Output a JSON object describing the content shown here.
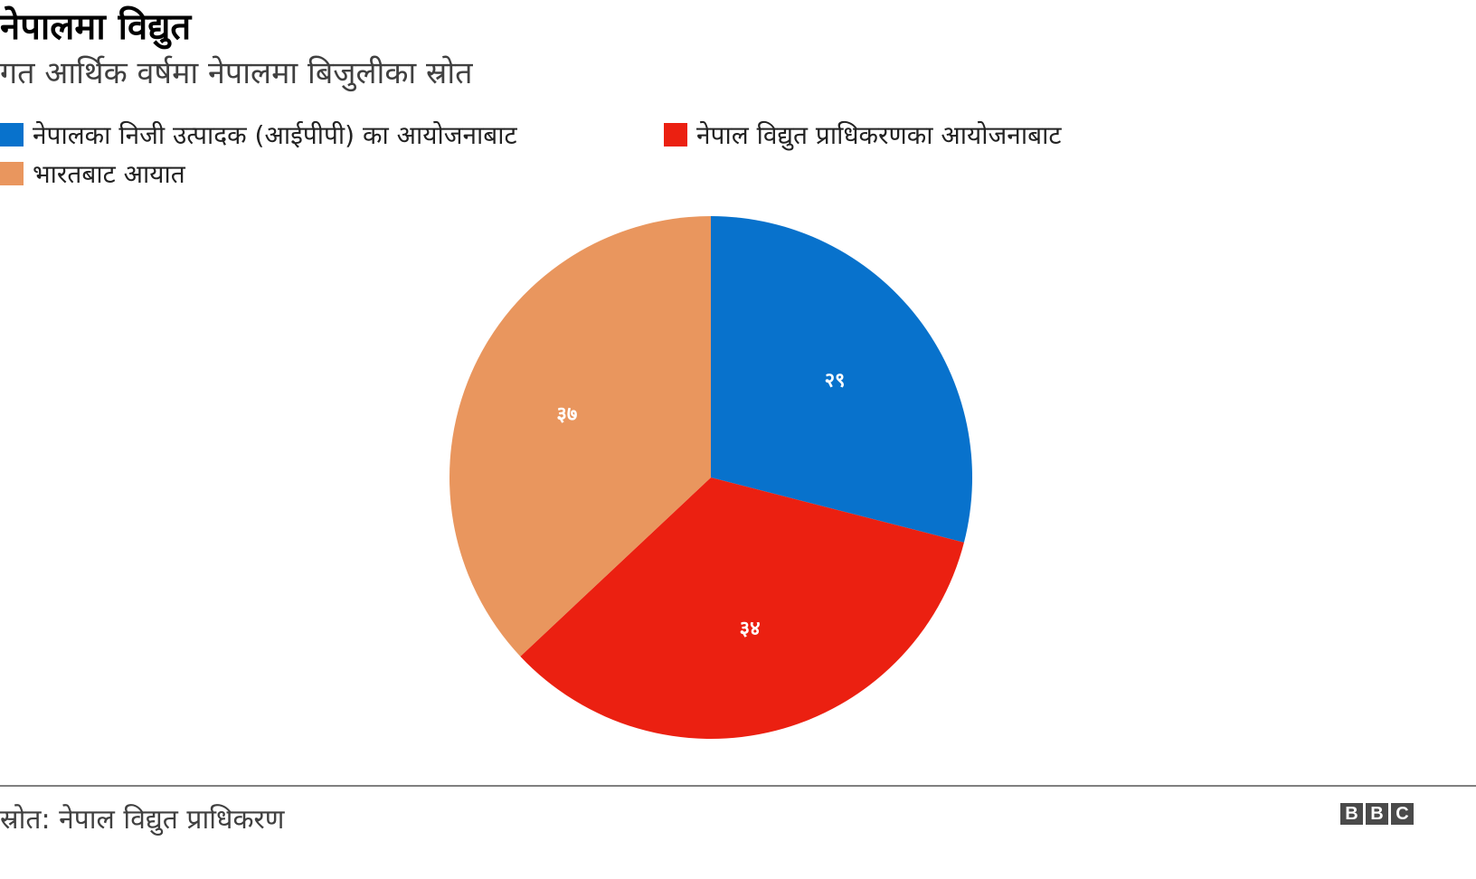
{
  "header": {
    "title": "नेपालमा विद्युत",
    "subtitle": "गत आर्थिक वर्षमा नेपालमा बिजुलीका स्रोत"
  },
  "legend": {
    "items": [
      {
        "label": "नेपालका निजी उत्पादक (आईपीपी) का आयोजनाबाट",
        "color": "#0872cc"
      },
      {
        "label": "नेपाल विद्युत प्राधिकरणका आयोजनाबाट",
        "color": "#eb2011"
      },
      {
        "label": "भारतबाट आयात",
        "color": "#e9965e"
      }
    ]
  },
  "footer": {
    "source": "स्रोत: नेपाल विद्युत प्राधिकरण",
    "logo": [
      "B",
      "B",
      "C"
    ]
  },
  "chart_data": {
    "type": "pie",
    "title": "नेपालमा विद्युत",
    "subtitle": "गत आर्थिक वर्षमा नेपालमा बिजुलीका स्रोत",
    "categories": [
      "नेपालका निजी उत्पादक (आईपीपी) का आयोजनाबाट",
      "नेपाल विद्युत प्राधिकरणका आयोजनाबाट",
      "भारतबाट आयात"
    ],
    "values": [
      29,
      34,
      37
    ],
    "value_labels": [
      "२९",
      "३४",
      "३७"
    ],
    "colors": [
      "#0872cc",
      "#eb2011",
      "#e9965e"
    ],
    "start_angle": "12 o'clock, clockwise",
    "legend_position": "top-left",
    "source": "स्रोत: नेपाल विद्युत प्राधिकरण"
  }
}
